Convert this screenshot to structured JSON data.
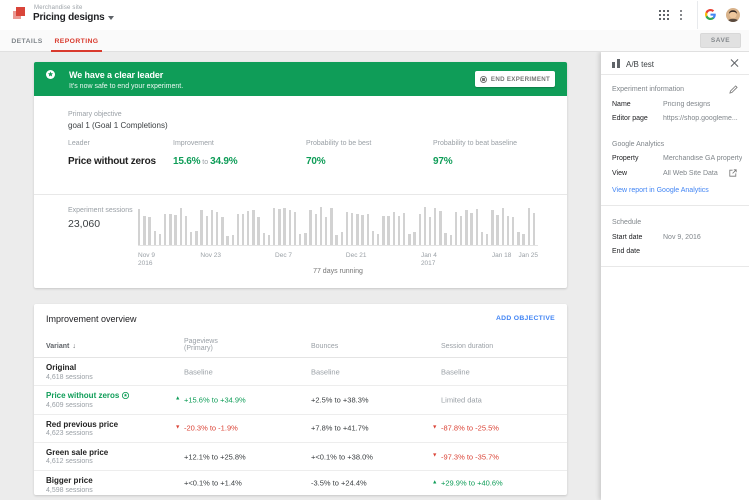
{
  "topbar": {
    "site_label": "Merchandise site",
    "title": "Pricing designs",
    "logo": "google-optimize-logo",
    "icons": [
      "apps-grid-icon",
      "kebab-menu-icon",
      "google-logo",
      "user-avatar"
    ]
  },
  "tabbar": {
    "tabs": [
      {
        "label": "DETAILS",
        "active": false
      },
      {
        "label": "REPORTING",
        "active": true
      }
    ],
    "save_label": "SAVE"
  },
  "banner": {
    "title": "We have a clear leader",
    "subtitle": "It's now safe to end your experiment.",
    "button_label": "END EXPERIMENT",
    "icon": "star-circle-icon",
    "color": "#0f9d58"
  },
  "summary": {
    "objective_label": "Primary objective",
    "objective_value": "goal 1 (Goal 1 Completions)",
    "stats": [
      {
        "label": "Leader",
        "value": "Price without zeros",
        "style": "dark"
      },
      {
        "label": "Improvement",
        "value_from": "15.6%",
        "joiner": "to",
        "value_to": "34.9%",
        "style": "green"
      },
      {
        "label": "Probability to be best",
        "value": "70%",
        "style": "green"
      },
      {
        "label": "Probability to beat baseline",
        "value": "97%",
        "style": "green"
      }
    ]
  },
  "chart_data": {
    "type": "bar",
    "title": "Experiment sessions",
    "total_label": "23,060",
    "total_value": 23060,
    "footer": "77 days running",
    "x_start_date": "Nov 9, 2016",
    "bar_color": "#d2d2d2",
    "ticks": [
      {
        "day": 0,
        "line1": "Nov 9",
        "line2": "2016",
        "align": "left"
      },
      {
        "day": 14,
        "line1": "Nov 23",
        "line2": "",
        "align": "center"
      },
      {
        "day": 28,
        "line1": "Dec 7",
        "line2": "",
        "align": "center"
      },
      {
        "day": 42,
        "line1": "Dec 21",
        "line2": "",
        "align": "center"
      },
      {
        "day": 56,
        "line1": "Jan 4",
        "line2": "2017",
        "align": "center"
      },
      {
        "day": 70,
        "line1": "Jan 18",
        "line2": "",
        "align": "center"
      },
      {
        "day": 77,
        "line1": "Jan 25",
        "line2": "",
        "align": "right"
      }
    ],
    "values": [
      401,
      331,
      319,
      154,
      122,
      349,
      346,
      334,
      418,
      330,
      150,
      154,
      391,
      327,
      397,
      374,
      320,
      104,
      109,
      345,
      347,
      385,
      399,
      319,
      141,
      116,
      414,
      406,
      412,
      391,
      373,
      119,
      134,
      397,
      354,
      428,
      315,
      421,
      114,
      151,
      374,
      362,
      354,
      336,
      345,
      156,
      126,
      330,
      327,
      368,
      329,
      364,
      127,
      145,
      351,
      428,
      321,
      417,
      379,
      140,
      111,
      368,
      326,
      392,
      356,
      402,
      146,
      128,
      395,
      342,
      413,
      324,
      321,
      149,
      119,
      422,
      356
    ]
  },
  "overview": {
    "title": "Improvement overview",
    "action_label": "ADD OBJECTIVE",
    "columns": [
      {
        "line1": "Variant",
        "line2": "",
        "sortable": true
      },
      {
        "line1": "Pageviews",
        "line2": "(Primary)"
      },
      {
        "line1": "Bounces",
        "line2": ""
      },
      {
        "line1": "Session duration",
        "line2": ""
      }
    ],
    "rows": [
      {
        "name": "Original",
        "green": false,
        "badge": false,
        "sessions": "4,618 sessions",
        "cells": [
          {
            "text": "Baseline",
            "color": "gray"
          },
          {
            "text": "Baseline",
            "color": "gray"
          },
          {
            "text": "Baseline",
            "color": "gray"
          }
        ]
      },
      {
        "name": "Price without zeros",
        "green": true,
        "badge": true,
        "sessions": "4,609 sessions",
        "cells": [
          {
            "arrow": "up",
            "text": "+15.6% to +34.9%",
            "color": "green"
          },
          {
            "text": "+2.5% to +38.3%",
            "color": "dark"
          },
          {
            "text": "Limited data",
            "color": "gray"
          }
        ]
      },
      {
        "name": "Red previous price",
        "green": false,
        "badge": false,
        "sessions": "4,623 sessions",
        "cells": [
          {
            "arrow": "down",
            "text": "-20.3% to -1.9%",
            "color": "red"
          },
          {
            "text": "+7.8% to +41.7%",
            "color": "dark"
          },
          {
            "arrow": "down",
            "text": "-87.8% to -25.5%",
            "color": "red"
          }
        ]
      },
      {
        "name": "Green sale price",
        "green": false,
        "badge": false,
        "sessions": "4,612 sessions",
        "cells": [
          {
            "text": "+12.1% to +25.8%",
            "color": "dark"
          },
          {
            "text": "+<0.1% to +38.0%",
            "color": "dark"
          },
          {
            "arrow": "down",
            "text": "-97.3% to -35.7%",
            "color": "red"
          }
        ]
      },
      {
        "name": "Bigger price",
        "green": false,
        "badge": false,
        "sessions": "4,598 sessions",
        "cells": [
          {
            "text": "+<0.1% to +1.4%",
            "color": "dark"
          },
          {
            "text": "-3.5% to +24.4%",
            "color": "dark"
          },
          {
            "arrow": "up",
            "text": "+29.9% to +40.6%",
            "color": "green"
          }
        ]
      }
    ]
  },
  "panel": {
    "title": "A/B test",
    "icon": "ab-test-icon",
    "sections": [
      {
        "header": "Experiment information",
        "header_icon": "pencil-icon",
        "fields": [
          {
            "label": "Name",
            "value": "Pricing designs"
          },
          {
            "label": "Editor page",
            "value": "https://shop.googleme..."
          }
        ]
      },
      {
        "header": "Google Analytics",
        "fields": [
          {
            "label": "Property",
            "value": "Merchandise GA property"
          },
          {
            "label": "View",
            "value": "All Web Site Data",
            "value_icon": "open-in-new-icon"
          }
        ],
        "link": "View report in Google Analytics"
      },
      {
        "header": "Schedule",
        "fields": [
          {
            "label": "Start date",
            "value": "Nov 9, 2016"
          },
          {
            "label": "End date",
            "value": ""
          }
        ]
      }
    ]
  }
}
